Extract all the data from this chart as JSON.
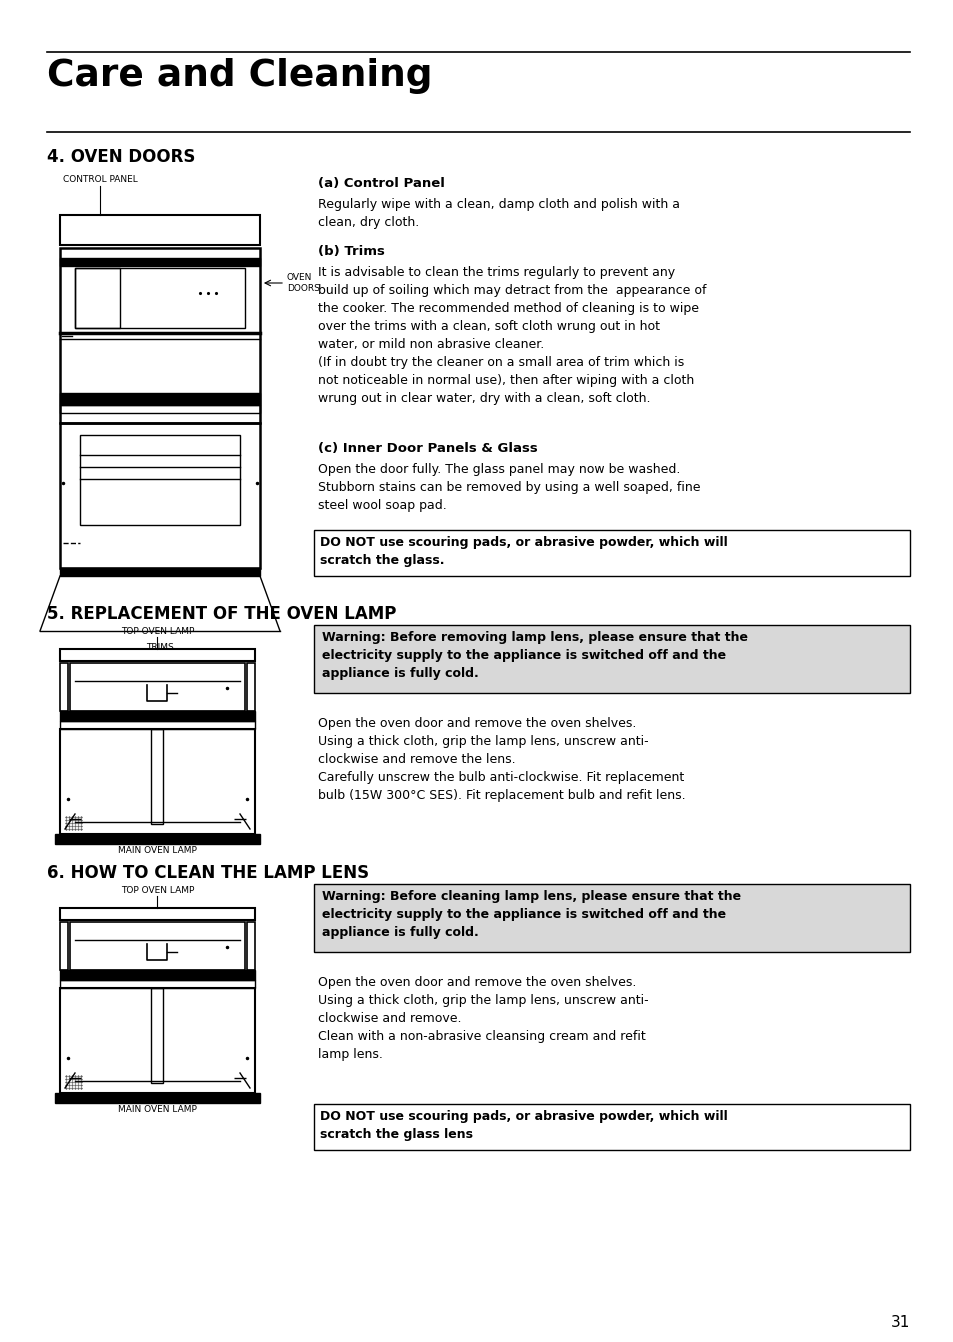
{
  "page_number": "31",
  "title": "Care and Cleaning",
  "section4_title": "4. OVEN DOORS",
  "section5_title": "5. REPLACEMENT OF THE OVEN LAMP",
  "section6_title": "6. HOW TO CLEAN THE LAMP LENS",
  "label_control_panel": "CONTROL PANEL",
  "label_oven_doors": "OVEN\nDOORS",
  "label_trims": "TRIMS",
  "label_top_oven_lamp": "TOP OVEN LAMP",
  "label_main_oven_lamp": "MAIN OVEN LAMP",
  "sub_a_title": "(a) Control Panel",
  "sub_a_text": "Regularly wipe with a clean, damp cloth and polish with a\nclean, dry cloth.",
  "sub_b_title": "(b) Trims",
  "sub_b_text": "It is advisable to clean the trims regularly to prevent any\nbuild up of soiling which may detract from the  appearance of\nthe cooker. The recommended method of cleaning is to wipe\nover the trims with a clean, soft cloth wrung out in hot\nwater, or mild non abrasive cleaner.\n(If in doubt try the cleaner on a small area of trim which is\nnot noticeable in normal use), then after wiping with a cloth\nwrung out in clear water, dry with a clean, soft cloth.",
  "sub_c_title": "(c) Inner Door Panels & Glass",
  "sub_c_text": "Open the door fully. The glass panel may now be washed.\nStubborn stains can be removed by using a well soaped, fine\nsteel wool soap pad.",
  "warning_box_1": "DO NOT use scouring pads, or abrasive powder, which will\nscratch the glass.",
  "warning_box_2": "Warning: Before removing lamp lens, please ensure that the\nelectricity supply to the appliance is switched off and the\nappliance is fully cold.",
  "sec5_text": "Open the oven door and remove the oven shelves.\nUsing a thick cloth, grip the lamp lens, unscrew anti-\nclockwise and remove the lens.\nCarefully unscrew the bulb anti-clockwise. Fit replacement\nbulb (15W 300°C SES). Fit replacement bulb and refit lens.",
  "warning_box_3": "Warning: Before cleaning lamp lens, please ensure that the\nelectricity supply to the appliance is switched off and the\nappliance is fully cold.",
  "sec6_text": "Open the oven door and remove the oven shelves.\nUsing a thick cloth, grip the lamp lens, unscrew anti-\nclockwise and remove.\nClean with a non-abrasive cleansing cream and refit\nlamp lens.",
  "warning_box_4": "DO NOT use scouring pads, or abrasive powder, which will\nscratch the glass lens",
  "bg_color": "#ffffff",
  "text_color": "#000000",
  "gray_box_color": "#d8d8d8",
  "line_color": "#000000"
}
